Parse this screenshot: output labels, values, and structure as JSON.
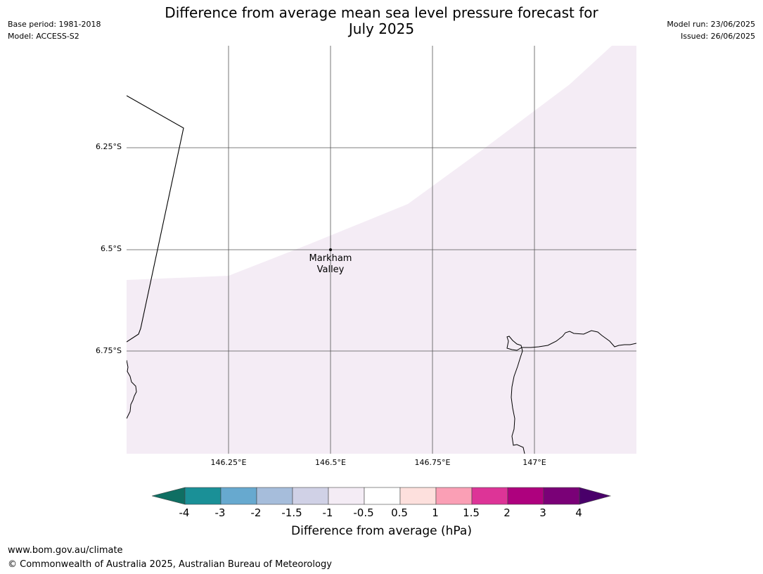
{
  "header": {
    "title_line1": "Difference from average mean sea level pressure forecast for",
    "title_line2": "July 2025",
    "base_period": "Base period: 1981-2018",
    "model": "Model: ACCESS-S2",
    "model_run": "Model run: 23/06/2025",
    "issued": "Issued: 26/06/2025"
  },
  "map": {
    "lat_labels": [
      "6.25°S",
      "6.5°S",
      "6.75°S"
    ],
    "lon_labels": [
      "146.25°E",
      "146.5°E",
      "146.75°E",
      "147°E"
    ],
    "place": {
      "name_line1": "Markham",
      "name_line2": "Valley"
    },
    "shaded_category": "-1 to -0.5",
    "shade_color": "#f4ecf5"
  },
  "colorbar": {
    "ticks": [
      "-4",
      "-3",
      "-2",
      "-1.5",
      "-1",
      "-0.5",
      "0.5",
      "1",
      "1.5",
      "2",
      "3",
      "4"
    ],
    "colors": [
      "#0f6f63",
      "#1a9097",
      "#67a9cf",
      "#a6bddb",
      "#d0d1e6",
      "#f4ecf5",
      "#ffffff",
      "#fde0dd",
      "#fa9fb5",
      "#dd3497",
      "#ae017e",
      "#7a0177",
      "#49006a"
    ],
    "label": "Difference from average (hPa)"
  },
  "footer": {
    "url": "www.bom.gov.au/climate",
    "copyright": "© Commonwealth of Australia 2025, Australian Bureau of Meteorology"
  }
}
